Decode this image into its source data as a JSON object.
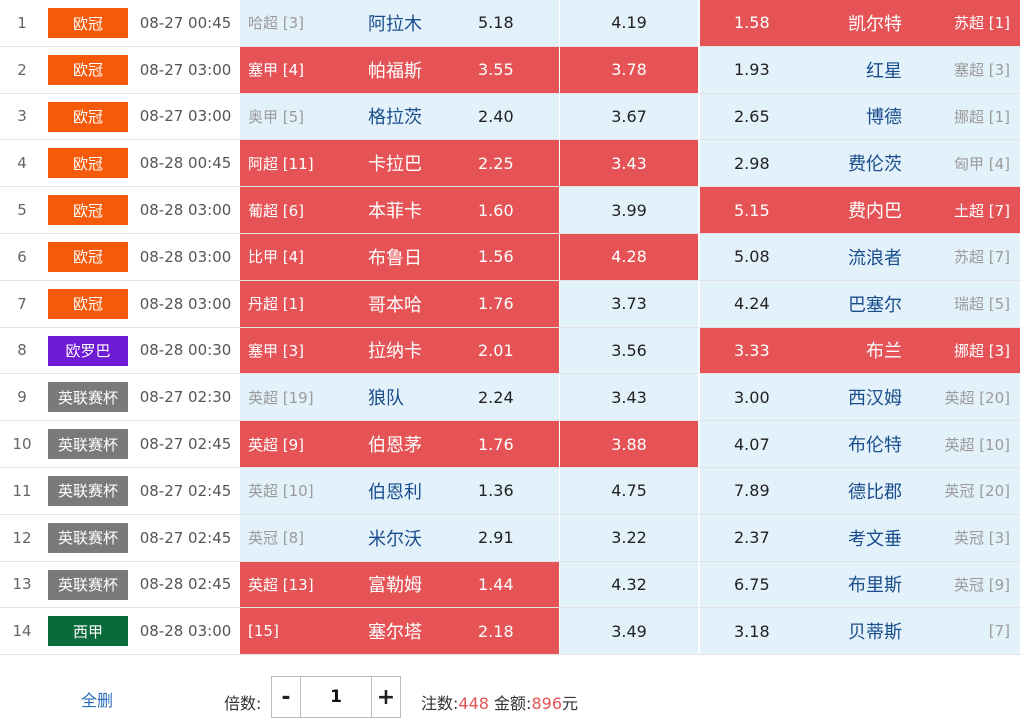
{
  "colors": {
    "league_euro_cup": "#f55a0a",
    "league_europa": "#6f1bd6",
    "league_league_cup": "#7a7a7a",
    "league_laliga": "#0a6b3a",
    "highlight_red": "#e55356",
    "cell_blue": "#e3f1fb"
  },
  "matches": [
    {
      "num": "1",
      "league": "欧冠",
      "league_color": "#f55a0a",
      "time": "08-27 00:45",
      "home_rank": "哈超 [3]",
      "home_team": "阿拉木",
      "home_odd": "5.18",
      "home_hl": false,
      "draw_odd": "4.19",
      "draw_hl": false,
      "away_odd": "1.58",
      "away_team": "凯尔特",
      "away_rank": "苏超 [1]",
      "away_hl": true
    },
    {
      "num": "2",
      "league": "欧冠",
      "league_color": "#f55a0a",
      "time": "08-27 03:00",
      "home_rank": "塞甲 [4]",
      "home_team": "帕福斯",
      "home_odd": "3.55",
      "home_hl": true,
      "draw_odd": "3.78",
      "draw_hl": true,
      "away_odd": "1.93",
      "away_team": "红星",
      "away_rank": "塞超 [3]",
      "away_hl": false
    },
    {
      "num": "3",
      "league": "欧冠",
      "league_color": "#f55a0a",
      "time": "08-27 03:00",
      "home_rank": "奥甲 [5]",
      "home_team": "格拉茨",
      "home_odd": "2.40",
      "home_hl": false,
      "draw_odd": "3.67",
      "draw_hl": false,
      "away_odd": "2.65",
      "away_team": "博德",
      "away_rank": "挪超 [1]",
      "away_hl": false
    },
    {
      "num": "4",
      "league": "欧冠",
      "league_color": "#f55a0a",
      "time": "08-28 00:45",
      "home_rank": "阿超 [11]",
      "home_team": "卡拉巴",
      "home_odd": "2.25",
      "home_hl": true,
      "draw_odd": "3.43",
      "draw_hl": true,
      "away_odd": "2.98",
      "away_team": "费伦茨",
      "away_rank": "匈甲 [4]",
      "away_hl": false
    },
    {
      "num": "5",
      "league": "欧冠",
      "league_color": "#f55a0a",
      "time": "08-28 03:00",
      "home_rank": "葡超 [6]",
      "home_team": "本菲卡",
      "home_odd": "1.60",
      "home_hl": true,
      "draw_odd": "3.99",
      "draw_hl": false,
      "away_odd": "5.15",
      "away_team": "费内巴",
      "away_rank": "土超 [7]",
      "away_hl": true
    },
    {
      "num": "6",
      "league": "欧冠",
      "league_color": "#f55a0a",
      "time": "08-28 03:00",
      "home_rank": "比甲 [4]",
      "home_team": "布鲁日",
      "home_odd": "1.56",
      "home_hl": true,
      "draw_odd": "4.28",
      "draw_hl": true,
      "away_odd": "5.08",
      "away_team": "流浪者",
      "away_rank": "苏超 [7]",
      "away_hl": false
    },
    {
      "num": "7",
      "league": "欧冠",
      "league_color": "#f55a0a",
      "time": "08-28 03:00",
      "home_rank": "丹超 [1]",
      "home_team": "哥本哈",
      "home_odd": "1.76",
      "home_hl": true,
      "draw_odd": "3.73",
      "draw_hl": false,
      "away_odd": "4.24",
      "away_team": "巴塞尔",
      "away_rank": "瑞超 [5]",
      "away_hl": false
    },
    {
      "num": "8",
      "league": "欧罗巴",
      "league_color": "#6f1bd6",
      "time": "08-28 00:30",
      "home_rank": "塞甲 [3]",
      "home_team": "拉纳卡",
      "home_odd": "2.01",
      "home_hl": true,
      "draw_odd": "3.56",
      "draw_hl": false,
      "away_odd": "3.33",
      "away_team": "布兰",
      "away_rank": "挪超 [3]",
      "away_hl": true
    },
    {
      "num": "9",
      "league": "英联赛杯",
      "league_color": "#7a7a7a",
      "time": "08-27 02:30",
      "home_rank": "英超 [19]",
      "home_team": "狼队",
      "home_odd": "2.24",
      "home_hl": false,
      "draw_odd": "3.43",
      "draw_hl": false,
      "away_odd": "3.00",
      "away_team": "西汉姆",
      "away_rank": "英超 [20]",
      "away_hl": false
    },
    {
      "num": "10",
      "league": "英联赛杯",
      "league_color": "#7a7a7a",
      "time": "08-27 02:45",
      "home_rank": "英超 [9]",
      "home_team": "伯恩茅",
      "home_odd": "1.76",
      "home_hl": true,
      "draw_odd": "3.88",
      "draw_hl": true,
      "away_odd": "4.07",
      "away_team": "布伦特",
      "away_rank": "英超 [10]",
      "away_hl": false
    },
    {
      "num": "11",
      "league": "英联赛杯",
      "league_color": "#7a7a7a",
      "time": "08-27 02:45",
      "home_rank": "英超 [10]",
      "home_team": "伯恩利",
      "home_odd": "1.36",
      "home_hl": false,
      "draw_odd": "4.75",
      "draw_hl": false,
      "away_odd": "7.89",
      "away_team": "德比郡",
      "away_rank": "英冠 [20]",
      "away_hl": false
    },
    {
      "num": "12",
      "league": "英联赛杯",
      "league_color": "#7a7a7a",
      "time": "08-27 02:45",
      "home_rank": "英冠 [8]",
      "home_team": "米尔沃",
      "home_odd": "2.91",
      "home_hl": false,
      "draw_odd": "3.22",
      "draw_hl": false,
      "away_odd": "2.37",
      "away_team": "考文垂",
      "away_rank": "英冠 [3]",
      "away_hl": false
    },
    {
      "num": "13",
      "league": "英联赛杯",
      "league_color": "#7a7a7a",
      "time": "08-28 02:45",
      "home_rank": "英超 [13]",
      "home_team": "富勒姆",
      "home_odd": "1.44",
      "home_hl": true,
      "draw_odd": "4.32",
      "draw_hl": false,
      "away_odd": "6.75",
      "away_team": "布里斯",
      "away_rank": "英冠 [9]",
      "away_hl": false
    },
    {
      "num": "14",
      "league": "西甲",
      "league_color": "#0a6b3a",
      "time": "08-28 03:00",
      "home_rank": "[15]",
      "home_team": "塞尔塔",
      "home_odd": "2.18",
      "home_hl": true,
      "draw_odd": "3.49",
      "draw_hl": false,
      "away_odd": "3.18",
      "away_team": "贝蒂斯",
      "away_rank": "[7]",
      "away_hl": false
    }
  ],
  "footer": {
    "clear_label": "全删",
    "multiplier_label": "倍数:",
    "multiplier_value": "1",
    "minus_label": "-",
    "plus_label": "+",
    "bets_label": "注数:",
    "bets_value": "448",
    "amount_label": "金额:",
    "amount_value": "896",
    "amount_unit": "元"
  }
}
